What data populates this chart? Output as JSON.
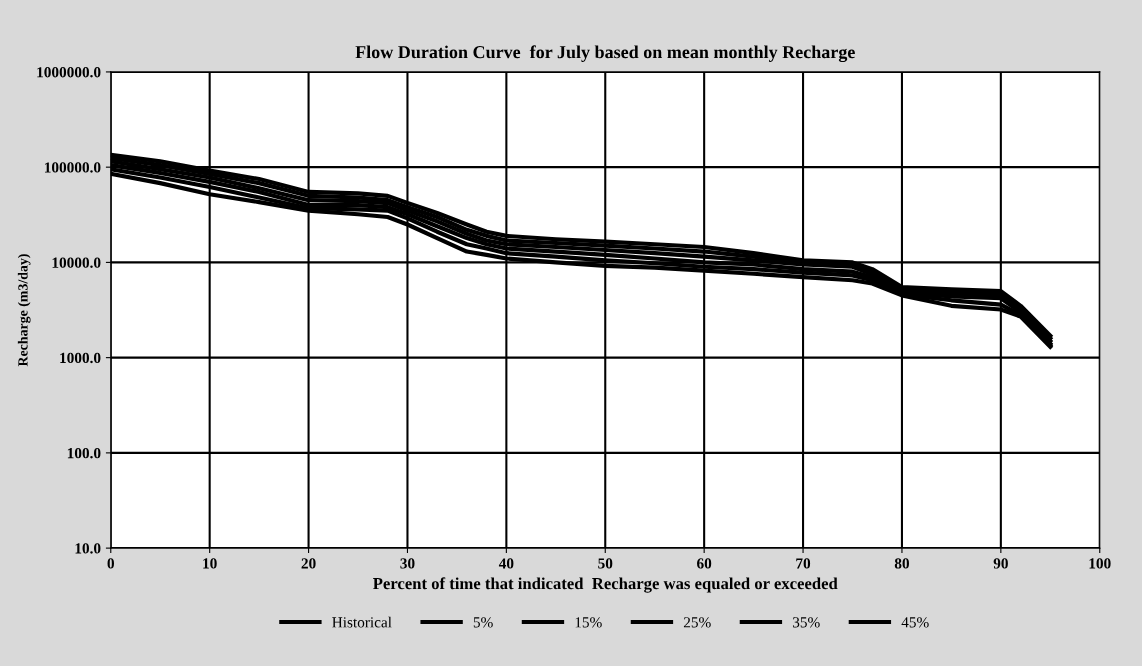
{
  "chart_data": {
    "type": "line",
    "title": "Flow Duration Curve  for July based on mean monthly Recharge",
    "xlabel": "Percent of time that indicated  Recharge was equaled or exceeded",
    "ylabel": "Recharge (m3/day)",
    "x": [
      0,
      5,
      10,
      15,
      20,
      25,
      28,
      30,
      33,
      36,
      38,
      40,
      45,
      50,
      55,
      60,
      65,
      70,
      75,
      77,
      80,
      85,
      90,
      92,
      95
    ],
    "series": [
      {
        "name": "Historical",
        "color": "#000000",
        "values": [
          85000,
          68000,
          52000,
          43000,
          35000,
          32000,
          30000,
          25000,
          18000,
          13000,
          12000,
          11000,
          10000,
          9200,
          8800,
          8200,
          7600,
          7000,
          6500,
          6000,
          4500,
          3500,
          3200,
          2700,
          1300
        ]
      },
      {
        "name": "5%",
        "color": "#000000",
        "values": [
          95000,
          78000,
          62000,
          48000,
          37000,
          36000,
          35000,
          29000,
          21000,
          15500,
          14000,
          12500,
          11500,
          10500,
          9800,
          9000,
          8500,
          7800,
          7300,
          6500,
          4600,
          4000,
          3600,
          2800,
          1350
        ]
      },
      {
        "name": "15%",
        "color": "#000000",
        "values": [
          105000,
          87000,
          70000,
          55000,
          40000,
          40000,
          38000,
          32000,
          24000,
          18000,
          15500,
          14000,
          13000,
          12000,
          11000,
          10000,
          9500,
          8500,
          8000,
          7000,
          4800,
          4400,
          4200,
          3000,
          1400
        ]
      },
      {
        "name": "25%",
        "color": "#000000",
        "values": [
          115000,
          95000,
          78000,
          60000,
          45000,
          44000,
          42000,
          35000,
          27000,
          20000,
          17000,
          15500,
          14500,
          13500,
          12500,
          11500,
          10500,
          9500,
          9000,
          7500,
          5000,
          4700,
          4500,
          3100,
          1500
        ]
      },
      {
        "name": "35%",
        "color": "#000000",
        "values": [
          125000,
          105000,
          85000,
          68000,
          50000,
          48000,
          45000,
          38000,
          30000,
          22000,
          19000,
          17000,
          16000,
          15000,
          14000,
          13000,
          11500,
          10000,
          9500,
          8000,
          5200,
          5000,
          4800,
          3300,
          1600
        ]
      },
      {
        "name": "45%",
        "color": "#000000",
        "values": [
          135000,
          115000,
          92000,
          75000,
          55000,
          53000,
          50000,
          42000,
          33000,
          25000,
          21000,
          19000,
          17500,
          16500,
          15500,
          14500,
          12500,
          10500,
          10000,
          8500,
          5500,
          5200,
          5000,
          3500,
          1700
        ]
      }
    ],
    "log": "y",
    "xlim": [
      0,
      100
    ],
    "xticks": [
      0,
      10,
      20,
      30,
      40,
      50,
      60,
      70,
      80,
      90,
      100
    ],
    "ylim": [
      10,
      1000000
    ],
    "yticks": [
      {
        "value": 10,
        "label": "10.0"
      },
      {
        "value": 100,
        "label": "100.0"
      },
      {
        "value": 1000,
        "label": "1000.0"
      },
      {
        "value": 10000,
        "label": "10000.0"
      },
      {
        "value": 100000,
        "label": "100000.0"
      },
      {
        "value": 1000000,
        "label": "1000000.0"
      }
    ],
    "grid": true,
    "legend": "bottom",
    "marker": "none",
    "line_style": "solid"
  }
}
